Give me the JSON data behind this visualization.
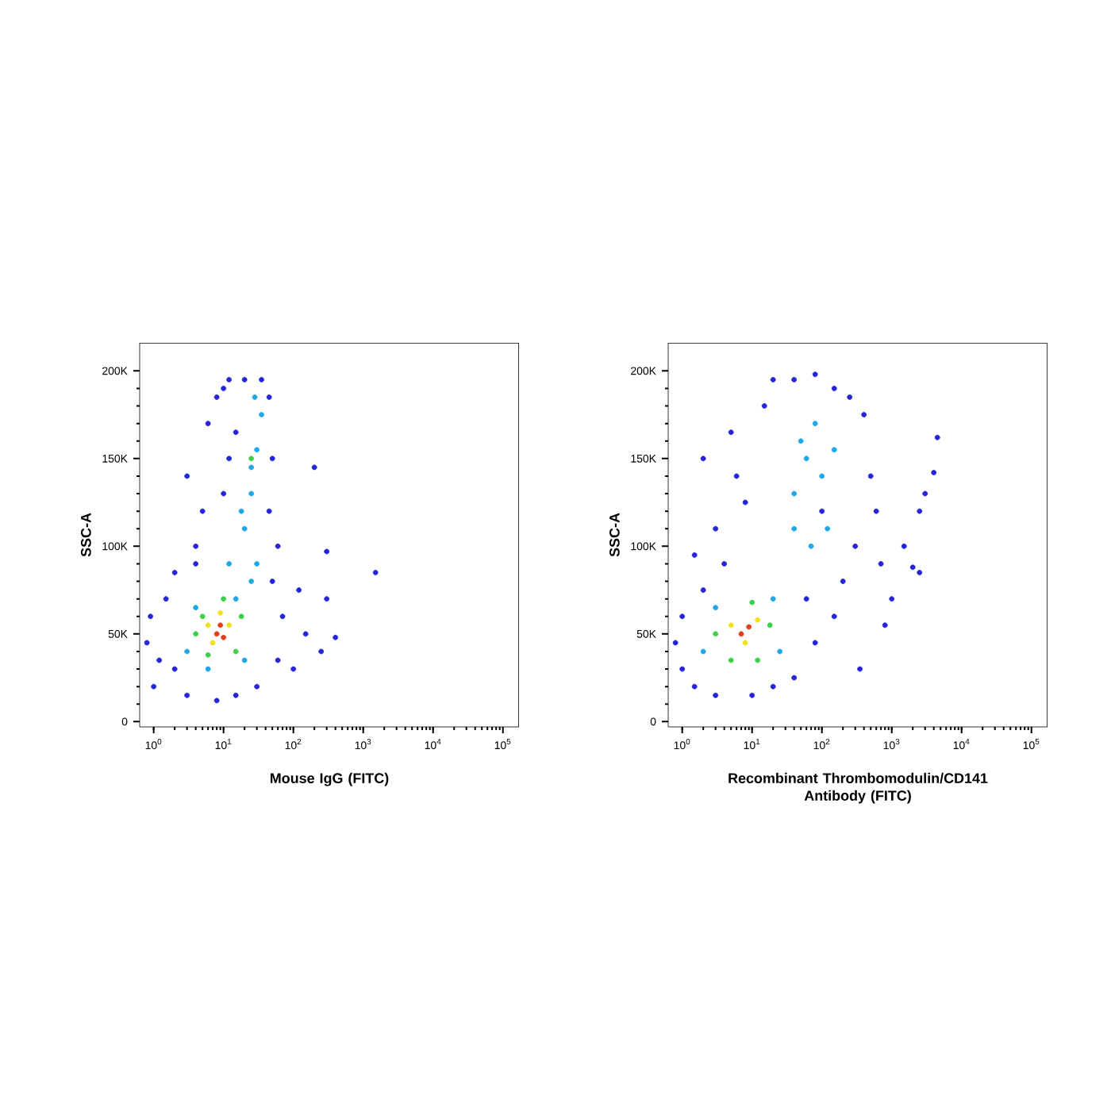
{
  "chart_data": [
    {
      "type": "scatter",
      "xlabel": "Mouse IgG (FITC)",
      "ylabel": "SSC-A",
      "log": "x",
      "marker": "circle",
      "grid": false,
      "xlim": [
        0.63,
        170000
      ],
      "ylim": [
        -3000,
        216000
      ],
      "xticks": [
        {
          "value": 1,
          "label": "10$^{0}$"
        },
        {
          "value": 10,
          "label": "10$^{1}$"
        },
        {
          "value": 100,
          "label": "10$^{2}$"
        },
        {
          "value": 1000,
          "label": "10$^{3}$"
        },
        {
          "value": 10000,
          "label": "10$^{4}$"
        },
        {
          "value": 100000,
          "label": "10$^{5}$"
        }
      ],
      "yticks": [
        0,
        {
          "value": 50000,
          "label": "50K"
        },
        {
          "value": 100000,
          "label": "100K"
        },
        {
          "value": 150000,
          "label": "150K"
        },
        {
          "value": 200000,
          "label": "200K"
        }
      ],
      "series": [
        {
          "color": "#2424d8",
          "x": [
            1.0,
            0.8,
            0.9,
            1.5,
            2,
            3,
            2,
            4,
            5,
            3,
            6,
            8,
            10,
            12,
            15,
            20,
            35,
            45,
            50,
            45,
            60,
            50,
            70,
            60,
            30,
            15,
            8,
            1.2,
            4,
            10,
            12,
            200,
            300,
            1500,
            120,
            150,
            400,
            250,
            100,
            300
          ],
          "values": [
            20000,
            45000,
            60000,
            70000,
            30000,
            15000,
            85000,
            100000,
            120000,
            140000,
            170000,
            185000,
            190000,
            195000,
            165000,
            195000,
            195000,
            185000,
            150000,
            120000,
            100000,
            80000,
            60000,
            35000,
            20000,
            15000,
            12000,
            35000,
            90000,
            130000,
            150000,
            145000,
            97000,
            85000,
            75000,
            50000,
            48000,
            40000,
            30000,
            70000
          ]
        },
        {
          "color": "#1ea8e8",
          "x": [
            3,
            4,
            15,
            25,
            12,
            20,
            25,
            30,
            35,
            28,
            25,
            18,
            30,
            6,
            20
          ],
          "values": [
            40000,
            65000,
            70000,
            80000,
            90000,
            110000,
            130000,
            155000,
            175000,
            185000,
            145000,
            120000,
            90000,
            30000,
            35000
          ]
        },
        {
          "color": "#3cd048",
          "x": [
            4,
            6,
            15,
            18,
            10,
            5,
            25
          ],
          "values": [
            50000,
            38000,
            40000,
            60000,
            70000,
            60000,
            150000
          ]
        },
        {
          "color": "#f0e020",
          "x": [
            7,
            12,
            9,
            6
          ],
          "values": [
            45000,
            55000,
            62000,
            55000
          ]
        },
        {
          "color": "#e0401a",
          "x": [
            8,
            10,
            9
          ],
          "values": [
            50000,
            48000,
            55000
          ]
        }
      ]
    },
    {
      "type": "scatter",
      "xlabel": "Recombinant Thrombomodulin/CD141 Antibody (FITC)",
      "ylabel": "SSC-A",
      "log": "x",
      "marker": "circle",
      "grid": false,
      "xlim": [
        0.63,
        170000
      ],
      "ylim": [
        -3000,
        216000
      ],
      "xticks": [
        {
          "value": 1,
          "label": "10$^{0}$"
        },
        {
          "value": 10,
          "label": "10$^{1}$"
        },
        {
          "value": 100,
          "label": "10$^{2}$"
        },
        {
          "value": 1000,
          "label": "10$^{3}$"
        },
        {
          "value": 10000,
          "label": "10$^{4}$"
        },
        {
          "value": 100000,
          "label": "10$^{5}$"
        }
      ],
      "yticks": [
        0,
        {
          "value": 50000,
          "label": "50K"
        },
        {
          "value": 100000,
          "label": "100K"
        },
        {
          "value": 150000,
          "label": "150K"
        },
        {
          "value": 200000,
          "label": "200K"
        }
      ],
      "series": [
        {
          "color": "#2424d8",
          "x": [
            0.8,
            1,
            1,
            1.5,
            2,
            1.5,
            3,
            2,
            5,
            8,
            15,
            20,
            40,
            80,
            150,
            250,
            400,
            500,
            600,
            300,
            200,
            150,
            80,
            40,
            20,
            10,
            3,
            4,
            6,
            1000,
            700,
            1500,
            2000,
            2500,
            3000,
            2500,
            4000,
            4500,
            800,
            350,
            100,
            60
          ],
          "values": [
            45000,
            30000,
            60000,
            20000,
            75000,
            95000,
            110000,
            150000,
            165000,
            125000,
            180000,
            195000,
            195000,
            198000,
            190000,
            185000,
            175000,
            140000,
            120000,
            100000,
            80000,
            60000,
            45000,
            25000,
            20000,
            15000,
            15000,
            90000,
            140000,
            70000,
            90000,
            100000,
            88000,
            85000,
            130000,
            120000,
            142000,
            162000,
            55000,
            30000,
            120000,
            70000
          ]
        },
        {
          "color": "#1ea8e8",
          "x": [
            2,
            3,
            20,
            25,
            40,
            60,
            80,
            100,
            50,
            150,
            120,
            70,
            40
          ],
          "values": [
            40000,
            65000,
            70000,
            40000,
            130000,
            150000,
            170000,
            140000,
            160000,
            155000,
            110000,
            100000,
            110000
          ]
        },
        {
          "color": "#3cd048",
          "x": [
            3,
            5,
            10,
            18,
            12
          ],
          "values": [
            50000,
            35000,
            68000,
            55000,
            35000
          ]
        },
        {
          "color": "#f0e020",
          "x": [
            5,
            8,
            12
          ],
          "values": [
            55000,
            45000,
            58000
          ]
        },
        {
          "color": "#e0401a",
          "x": [
            7,
            9
          ],
          "values": [
            50000,
            54000
          ]
        }
      ]
    }
  ]
}
